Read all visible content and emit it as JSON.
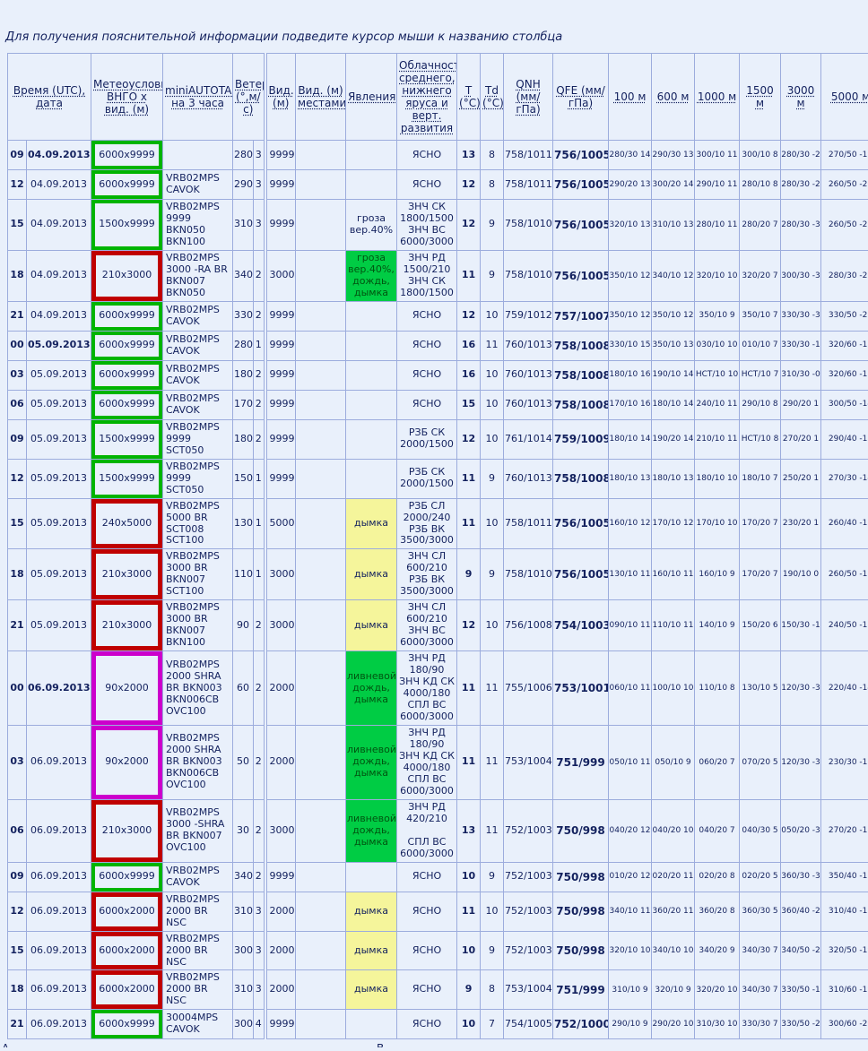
{
  "page": {
    "instruction": "Для получения пояснительной информации подведите курсор мыши к названию столбца",
    "footer_left_fragment": "А",
    "footer_center_fragment": "В"
  },
  "colors": {
    "background": "#e9f0fb",
    "grid_border": "#9cacdd",
    "text": "#13215e",
    "ok_frame": "#00b400",
    "alert_frame": "#c00000",
    "storm_frame": "#cc00cc",
    "phenomena_green_bg": "#00cc44",
    "phenomena_yellow_bg": "#f5f59b"
  },
  "header": {
    "time": "Время (UTC), дата",
    "meteo": "Метеоусловия ВНГО х вид. (м)",
    "minitaf": "miniAUTOTAF на 3 часа",
    "wind": "Ветер (°,м/с)",
    "visibility": "Вид. (м)",
    "visibility_local": "Вид. (м) местами*",
    "phenomena": "Явления",
    "clouds": "Облачность среднего, нижнего яруса и верт. развития",
    "t": "T (°C)",
    "td": "Td (°C)",
    "qnh": "QNH (мм/гПа)",
    "qfe": "QFE (мм/гПа)",
    "levels": [
      "100 м",
      "600 м",
      "1000 м",
      "1500 м",
      "3000 м",
      "5000 м"
    ]
  },
  "rows": [
    {
      "hour": "09",
      "date": "04.09.2013",
      "date_bold": true,
      "meteo": "6000x9999",
      "meteo_border": "green",
      "taf": "",
      "wind_dir": "280",
      "wind_speed": "3",
      "vis": "9999",
      "vis_local": "",
      "phenomena": "",
      "phen_bg": null,
      "clouds": "ЯСНО",
      "t": "13",
      "td": "8",
      "qnh": "758/1011",
      "qfe": "756/1005",
      "levels": [
        "280/30 14",
        "290/30 13",
        "300/10 11",
        "300/10 8",
        "280/30 -2",
        "270/50 -19"
      ]
    },
    {
      "hour": "12",
      "date": "04.09.2013",
      "date_bold": false,
      "meteo": "6000x9999",
      "meteo_border": "green",
      "taf": "VRB02MPS\nCAVOK",
      "wind_dir": "290",
      "wind_speed": "3",
      "vis": "9999",
      "vis_local": "",
      "phenomena": "",
      "phen_bg": null,
      "clouds": "ЯСНО",
      "t": "12",
      "td": "8",
      "qnh": "758/1011",
      "qfe": "756/1005",
      "levels": [
        "290/20 13",
        "300/20 14",
        "290/10 11",
        "280/10 8",
        "280/30 -2",
        "260/50 -20"
      ]
    },
    {
      "hour": "15",
      "date": "04.09.2013",
      "date_bold": false,
      "meteo": "1500x9999",
      "meteo_border": "green",
      "taf": "VRB02MPS\n9999\nBKN050\nBKN100",
      "wind_dir": "310",
      "wind_speed": "3",
      "vis": "9999",
      "vis_local": "",
      "phenomena": "гроза\nвер.40%",
      "phen_bg": null,
      "clouds": "ЗНЧ СК\n1800/1500\nЗНЧ ВС\n6000/3000",
      "t": "12",
      "td": "9",
      "qnh": "758/1010",
      "qfe": "756/1005",
      "levels": [
        "320/10 13",
        "310/10 13",
        "280/10 11",
        "280/20 7",
        "280/30 -3",
        "260/50 -21"
      ]
    },
    {
      "hour": "18",
      "date": "04.09.2013",
      "date_bold": false,
      "meteo": "210x3000",
      "meteo_border": "red",
      "taf": "VRB02MPS\n3000 -RA BR\nBKN007\nBKN050",
      "wind_dir": "340",
      "wind_speed": "2",
      "vis": "3000",
      "vis_local": "",
      "phenomena": "гроза\nвер.40%,\nдождь,\nдымка",
      "phen_bg": "green",
      "clouds": "ЗНЧ РД\n1500/210\nЗНЧ СК\n1800/1500",
      "t": "11",
      "td": "9",
      "qnh": "758/1010",
      "qfe": "756/1005",
      "levels": [
        "350/10 12",
        "340/10 12",
        "320/10 10",
        "320/20 7",
        "300/30 -3",
        "280/30 -22"
      ]
    },
    {
      "hour": "21",
      "date": "04.09.2013",
      "date_bold": false,
      "meteo": "6000x9999",
      "meteo_border": "green",
      "taf": "VRB02MPS\nCAVOK",
      "wind_dir": "330",
      "wind_speed": "2",
      "vis": "9999",
      "vis_local": "",
      "phenomena": "",
      "phen_bg": null,
      "clouds": "ЯСНО",
      "t": "12",
      "td": "10",
      "qnh": "759/1012",
      "qfe": "757/1007",
      "levels": [
        "350/10 12",
        "350/10 12",
        "350/10 9",
        "350/10 7",
        "330/30 -3",
        "330/50 -21"
      ]
    },
    {
      "hour": "00",
      "date": "05.09.2013",
      "date_bold": true,
      "meteo": "6000x9999",
      "meteo_border": "green",
      "taf": "VRB02MPS\nCAVOK",
      "wind_dir": "280",
      "wind_speed": "1",
      "vis": "9999",
      "vis_local": "",
      "phenomena": "",
      "phen_bg": null,
      "clouds": "ЯСНО",
      "t": "16",
      "td": "11",
      "qnh": "760/1013",
      "qfe": "758/1008",
      "levels": [
        "330/10 15",
        "350/10 13",
        "030/10 10",
        "010/10 7",
        "330/30 -1",
        "320/60 -17"
      ]
    },
    {
      "hour": "03",
      "date": "05.09.2013",
      "date_bold": false,
      "meteo": "6000x9999",
      "meteo_border": "green",
      "taf": "VRB02MPS\nCAVOK",
      "wind_dir": "180",
      "wind_speed": "2",
      "vis": "9999",
      "vis_local": "",
      "phenomena": "",
      "phen_bg": null,
      "clouds": "ЯСНО",
      "t": "16",
      "td": "10",
      "qnh": "760/1013",
      "qfe": "758/1008",
      "levels": [
        "180/10 16",
        "190/10 14",
        "НСТ/10 10",
        "НСТ/10 7",
        "310/30 -0",
        "320/60 -15"
      ]
    },
    {
      "hour": "06",
      "date": "05.09.2013",
      "date_bold": false,
      "meteo": "6000x9999",
      "meteo_border": "green",
      "taf": "VRB02MPS\nCAVOK",
      "wind_dir": "170",
      "wind_speed": "2",
      "vis": "9999",
      "vis_local": "",
      "phenomena": "",
      "phen_bg": null,
      "clouds": "ЯСНО",
      "t": "15",
      "td": "10",
      "qnh": "760/1013",
      "qfe": "758/1008",
      "levels": [
        "170/10 16",
        "180/10 14",
        "240/10 11",
        "290/10 8",
        "290/20 1",
        "300/50 -14"
      ]
    },
    {
      "hour": "09",
      "date": "05.09.2013",
      "date_bold": false,
      "meteo": "1500x9999",
      "meteo_border": "green",
      "taf": "VRB02MPS\n9999 SCT050",
      "wind_dir": "180",
      "wind_speed": "2",
      "vis": "9999",
      "vis_local": "",
      "phenomena": "",
      "phen_bg": null,
      "clouds": "РЗБ СК\n2000/1500",
      "t": "12",
      "td": "10",
      "qnh": "761/1014",
      "qfe": "759/1009",
      "levels": [
        "180/10 14",
        "190/20 14",
        "210/10 11",
        "НСТ/10 8",
        "270/20 1",
        "290/40 -15"
      ]
    },
    {
      "hour": "12",
      "date": "05.09.2013",
      "date_bold": false,
      "meteo": "1500x9999",
      "meteo_border": "green",
      "taf": "VRB02MPS\n9999 SCT050",
      "wind_dir": "150",
      "wind_speed": "1",
      "vis": "9999",
      "vis_local": "",
      "phenomena": "",
      "phen_bg": null,
      "clouds": "РЗБ СК\n2000/1500",
      "t": "11",
      "td": "9",
      "qnh": "760/1013",
      "qfe": "758/1008",
      "levels": [
        "180/10 13",
        "180/10 13",
        "180/10 10",
        "180/10 7",
        "250/20 1",
        "270/30 -14"
      ]
    },
    {
      "hour": "15",
      "date": "05.09.2013",
      "date_bold": false,
      "meteo": "240x5000",
      "meteo_border": "red",
      "taf": "VRB02MPS\n5000 BR\nSCT008\nSCT100",
      "wind_dir": "130",
      "wind_speed": "1",
      "vis": "5000",
      "vis_local": "",
      "phenomena": "дымка",
      "phen_bg": "yellow",
      "clouds": "РЗБ СЛ\n2000/240\nРЗБ ВК\n3500/3000",
      "t": "11",
      "td": "10",
      "qnh": "758/1011",
      "qfe": "756/1005",
      "levels": [
        "160/10 12",
        "170/10 12",
        "170/10 10",
        "170/20 7",
        "230/20 1",
        "260/40 -13"
      ]
    },
    {
      "hour": "18",
      "date": "05.09.2013",
      "date_bold": false,
      "meteo": "210x3000",
      "meteo_border": "red",
      "taf": "VRB02MPS\n3000 BR\nBKN007\nSCT100",
      "wind_dir": "110",
      "wind_speed": "1",
      "vis": "3000",
      "vis_local": "",
      "phenomena": "дымка",
      "phen_bg": "yellow",
      "clouds": "ЗНЧ СЛ\n600/210\nРЗБ ВК\n3500/3000",
      "t": "9",
      "td": "9",
      "qnh": "758/1010",
      "qfe": "756/1005",
      "levels": [
        "130/10 11",
        "160/10 11",
        "160/10 9",
        "170/20 7",
        "190/10 0",
        "260/50 -13"
      ]
    },
    {
      "hour": "21",
      "date": "05.09.2013",
      "date_bold": false,
      "meteo": "210x3000",
      "meteo_border": "red",
      "taf": "VRB02MPS\n3000 BR\nBKN007\nBKN100",
      "wind_dir": "90",
      "wind_speed": "2",
      "vis": "3000",
      "vis_local": "",
      "phenomena": "дымка",
      "phen_bg": "yellow",
      "clouds": "ЗНЧ СЛ\n600/210\nЗНЧ ВС\n6000/3000",
      "t": "12",
      "td": "10",
      "qnh": "756/1008",
      "qfe": "754/1003",
      "levels": [
        "090/10 11",
        "110/10 11",
        "140/10 9",
        "150/20 6",
        "150/30 -1",
        "240/50 -13"
      ]
    },
    {
      "hour": "00",
      "date": "06.09.2013",
      "date_bold": true,
      "meteo": "90x2000",
      "meteo_border": "magenta",
      "taf": "VRB02MPS\n2000 SHRA\nBR BKN003\nBKN006CB\nOVC100",
      "wind_dir": "60",
      "wind_speed": "2",
      "vis": "2000",
      "vis_local": "",
      "phenomena": "ливневой\nдождь,\nдымка",
      "phen_bg": "green",
      "clouds": "ЗНЧ РД\n180/90\nЗНЧ КД СК\n4000/180\nСПЛ ВС\n6000/3000",
      "t": "11",
      "td": "11",
      "qnh": "755/1006",
      "qfe": "753/1001",
      "levels": [
        "060/10 11",
        "100/10 10",
        "110/10 8",
        "130/10 5",
        "120/30 -3",
        "220/40 -14"
      ]
    },
    {
      "hour": "03",
      "date": "06.09.2013",
      "date_bold": false,
      "meteo": "90x2000",
      "meteo_border": "magenta",
      "taf": "VRB02MPS\n2000 SHRA\nBR BKN003\nBKN006CB\nOVC100",
      "wind_dir": "50",
      "wind_speed": "2",
      "vis": "2000",
      "vis_local": "",
      "phenomena": "ливневой\nдождь,\nдымка",
      "phen_bg": "green",
      "clouds": "ЗНЧ РД\n180/90\nЗНЧ КД СК\n4000/180\nСПЛ ВС\n6000/3000",
      "t": "11",
      "td": "11",
      "qnh": "753/1004",
      "qfe": "751/999",
      "levels": [
        "050/10 11",
        "050/10 9",
        "060/20 7",
        "070/20 5",
        "120/30 -3",
        "230/30 -15"
      ]
    },
    {
      "hour": "06",
      "date": "06.09.2013",
      "date_bold": false,
      "meteo": "210x3000",
      "meteo_border": "red",
      "taf": "VRB02MPS\n3000 -SHRA\nBR BKN007\nOVC100",
      "wind_dir": "30",
      "wind_speed": "2",
      "vis": "3000",
      "vis_local": "",
      "phenomena": "ливневой\nдождь,\nдымка",
      "phen_bg": "green",
      "clouds": "ЗНЧ РД\n420/210\n\nСПЛ ВС\n6000/3000",
      "t": "13",
      "td": "11",
      "qnh": "752/1003",
      "qfe": "750/998",
      "levels": [
        "040/20 12",
        "040/20 10",
        "040/20 7",
        "040/30 5",
        "050/20 -3",
        "270/20 -15"
      ]
    },
    {
      "hour": "09",
      "date": "06.09.2013",
      "date_bold": false,
      "meteo": "6000x9999",
      "meteo_border": "green",
      "taf": "VRB02MPS\nCAVOK",
      "wind_dir": "340",
      "wind_speed": "2",
      "vis": "9999",
      "vis_local": "",
      "phenomena": "",
      "phen_bg": null,
      "clouds": "ЯСНО",
      "t": "10",
      "td": "9",
      "qnh": "752/1003",
      "qfe": "750/998",
      "levels": [
        "010/20 12",
        "020/20 11",
        "020/20 8",
        "020/20 5",
        "360/30 -3",
        "350/40 -17"
      ]
    },
    {
      "hour": "12",
      "date": "06.09.2013",
      "date_bold": false,
      "meteo": "6000x2000",
      "meteo_border": "red",
      "taf": "VRB02MPS\n2000 BR NSC",
      "wind_dir": "310",
      "wind_speed": "3",
      "vis": "2000",
      "vis_local": "",
      "phenomena": "дымка",
      "phen_bg": "yellow",
      "clouds": "ЯСНО",
      "t": "11",
      "td": "10",
      "qnh": "752/1003",
      "qfe": "750/998",
      "levels": [
        "340/10 11",
        "360/20 11",
        "360/20 8",
        "360/30 5",
        "360/40 -2",
        "310/40 -18"
      ]
    },
    {
      "hour": "15",
      "date": "06.09.2013",
      "date_bold": false,
      "meteo": "6000x2000",
      "meteo_border": "red",
      "taf": "VRB02MPS\n2000 BR NSC",
      "wind_dir": "300",
      "wind_speed": "3",
      "vis": "2000",
      "vis_local": "",
      "phenomena": "дымка",
      "phen_bg": "yellow",
      "clouds": "ЯСНО",
      "t": "10",
      "td": "9",
      "qnh": "752/1003",
      "qfe": "750/998",
      "levels": [
        "320/10 10",
        "340/10 10",
        "340/20 9",
        "340/30 7",
        "340/50 -2",
        "320/50 -19"
      ]
    },
    {
      "hour": "18",
      "date": "06.09.2013",
      "date_bold": false,
      "meteo": "6000x2000",
      "meteo_border": "red",
      "taf": "VRB02MPS\n2000 BR NSC",
      "wind_dir": "310",
      "wind_speed": "3",
      "vis": "2000",
      "vis_local": "",
      "phenomena": "дымка",
      "phen_bg": "yellow",
      "clouds": "ЯСНО",
      "t": "9",
      "td": "8",
      "qnh": "753/1004",
      "qfe": "751/999",
      "levels": [
        "310/10 9",
        "320/10 9",
        "320/20 10",
        "340/30 7",
        "330/50 -1",
        "310/60 -19"
      ]
    },
    {
      "hour": "21",
      "date": "06.09.2013",
      "date_bold": false,
      "meteo": "6000x9999",
      "meteo_border": "green",
      "taf": "30004MPS\nCAVOK",
      "wind_dir": "300",
      "wind_speed": "4",
      "vis": "9999",
      "vis_local": "",
      "phenomena": "",
      "phen_bg": null,
      "clouds": "ЯСНО",
      "t": "10",
      "td": "7",
      "qnh": "754/1005",
      "qfe": "752/1000",
      "levels": [
        "290/10 9",
        "290/20 10",
        "310/30 10",
        "330/30 7",
        "330/50 -2",
        "300/60 -20"
      ]
    }
  ]
}
